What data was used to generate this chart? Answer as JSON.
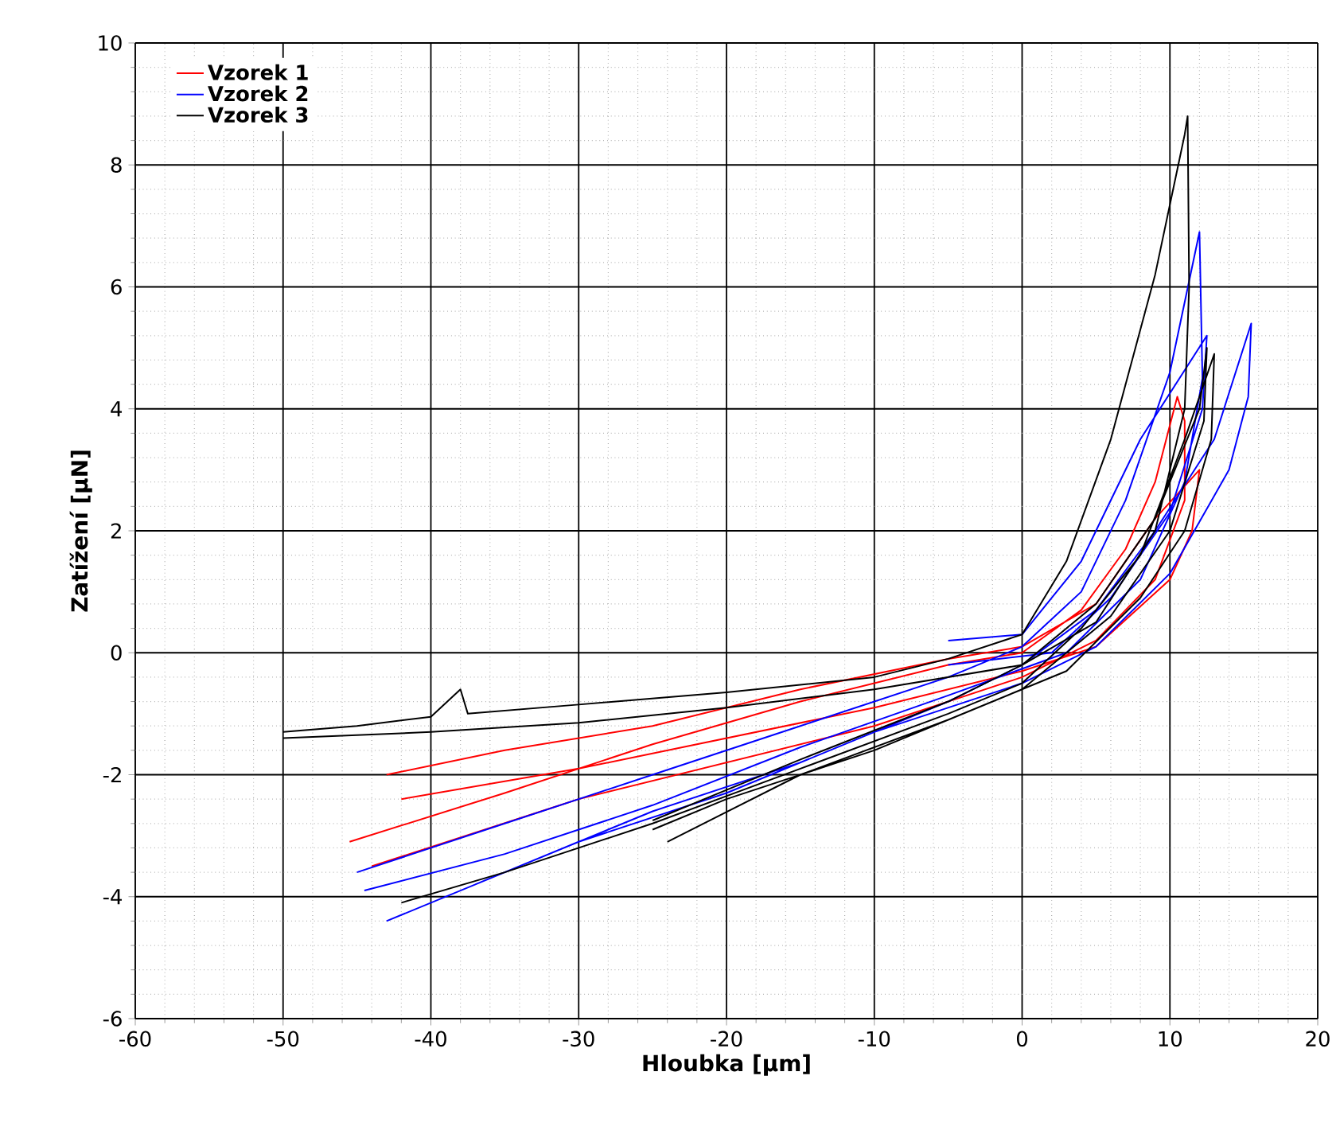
{
  "chart_data": {
    "type": "line",
    "xlabel": "Hloubka [µm]",
    "ylabel": "Zatížení [µN]",
    "xlim": [
      -60,
      20
    ],
    "ylim": [
      -6,
      10
    ],
    "xticks": [
      -60,
      -50,
      -40,
      -30,
      -20,
      -10,
      0,
      10,
      20
    ],
    "yticks": [
      -6,
      -4,
      -2,
      0,
      2,
      4,
      6,
      8,
      10
    ],
    "grid": true,
    "legend": "top left",
    "series": [
      {
        "name": "Vzorek 1",
        "color": "#ff0000",
        "x": [
          -45.5,
          -35,
          -25,
          -15,
          -5,
          0,
          4,
          7,
          9,
          10.5,
          11,
          11,
          9,
          5,
          0,
          -10,
          -20,
          -30,
          -44,
          null,
          -43,
          -35,
          -25,
          -15,
          -5,
          0,
          5,
          9,
          12,
          11.5,
          10,
          5,
          0,
          -10,
          -20,
          -30,
          -42
        ],
        "values": [
          -3.1,
          -2.3,
          -1.5,
          -0.8,
          -0.2,
          0,
          0.7,
          1.7,
          2.8,
          4.2,
          3.8,
          2.5,
          1.2,
          0.2,
          -0.4,
          -1.2,
          -1.8,
          -2.4,
          -3.5,
          null,
          -2.0,
          -1.6,
          -1.2,
          -0.6,
          -0.1,
          0.1,
          0.8,
          2.2,
          3.0,
          2.0,
          1.2,
          0.1,
          -0.3,
          -0.9,
          -1.4,
          -1.9,
          -2.4
        ]
      },
      {
        "name": "Vzorek 2",
        "color": "#0000ff",
        "x": [
          -45,
          -35,
          -25,
          -15,
          -5,
          0,
          4,
          7,
          10,
          12,
          12.2,
          11,
          8,
          3,
          -5,
          -15,
          -25,
          -35,
          -44.5,
          null,
          -43,
          -35,
          -25,
          -15,
          -5,
          0,
          5,
          9,
          13,
          15.5,
          15.3,
          14,
          10,
          5,
          0,
          -10,
          -20,
          -30,
          -37,
          null,
          -5,
          0,
          4,
          8,
          12.5,
          12.2,
          10,
          6,
          2,
          -5
        ],
        "values": [
          -3.6,
          -2.8,
          -2.0,
          -1.2,
          -0.4,
          0.1,
          1.0,
          2.5,
          4.6,
          6.9,
          4.5,
          2.8,
          1.2,
          0,
          -0.7,
          -1.55,
          -2.5,
          -3.3,
          -3.9,
          null,
          -4.4,
          -3.6,
          -2.6,
          -1.8,
          -0.8,
          -0.2,
          0.7,
          2.0,
          3.5,
          5.4,
          4.2,
          3.0,
          1.3,
          0.1,
          -0.5,
          -1.3,
          -2.3,
          -3.1,
          -3.8,
          null,
          0.2,
          0.3,
          1.5,
          3.5,
          5.2,
          4.0,
          2.3,
          0.9,
          0,
          -0.2
        ]
      },
      {
        "name": "Vzorek 3",
        "color": "#000000",
        "x": [
          -50,
          -45,
          -40,
          -38,
          -37.5,
          -30,
          -20,
          -10,
          -5,
          0,
          3,
          6,
          9,
          11,
          11.2,
          11.3,
          11,
          9,
          5,
          0,
          -10,
          -20,
          -30,
          -40,
          -50,
          null,
          -42,
          -35,
          -25,
          -15,
          -5,
          0,
          4,
          8,
          11,
          13,
          12.8,
          11,
          8,
          3,
          -5,
          -15,
          -24,
          null,
          -25,
          -15,
          -5,
          0,
          5,
          9,
          12,
          12.5,
          12.3,
          10,
          6,
          0,
          -10,
          -20,
          -25
        ],
        "values": [
          -1.3,
          -1.2,
          -1.05,
          -0.6,
          -1.0,
          -0.85,
          -0.65,
          -0.4,
          -0.1,
          0.3,
          1.5,
          3.5,
          6.2,
          8.5,
          8.8,
          6.0,
          4.0,
          2.0,
          0.5,
          -0.2,
          -0.6,
          -0.9,
          -1.15,
          -1.3,
          -1.4,
          null,
          -4.1,
          -3.6,
          -2.8,
          -1.9,
          -1.0,
          -0.5,
          0.4,
          1.6,
          3.5,
          4.9,
          3.5,
          2.0,
          0.9,
          -0.3,
          -1.1,
          -2.0,
          -3.1,
          null,
          -2.75,
          -1.75,
          -0.8,
          -0.2,
          0.8,
          2.2,
          4.0,
          5.0,
          3.8,
          2.0,
          0.6,
          -0.6,
          -1.6,
          -2.4,
          -2.9
        ]
      }
    ]
  }
}
